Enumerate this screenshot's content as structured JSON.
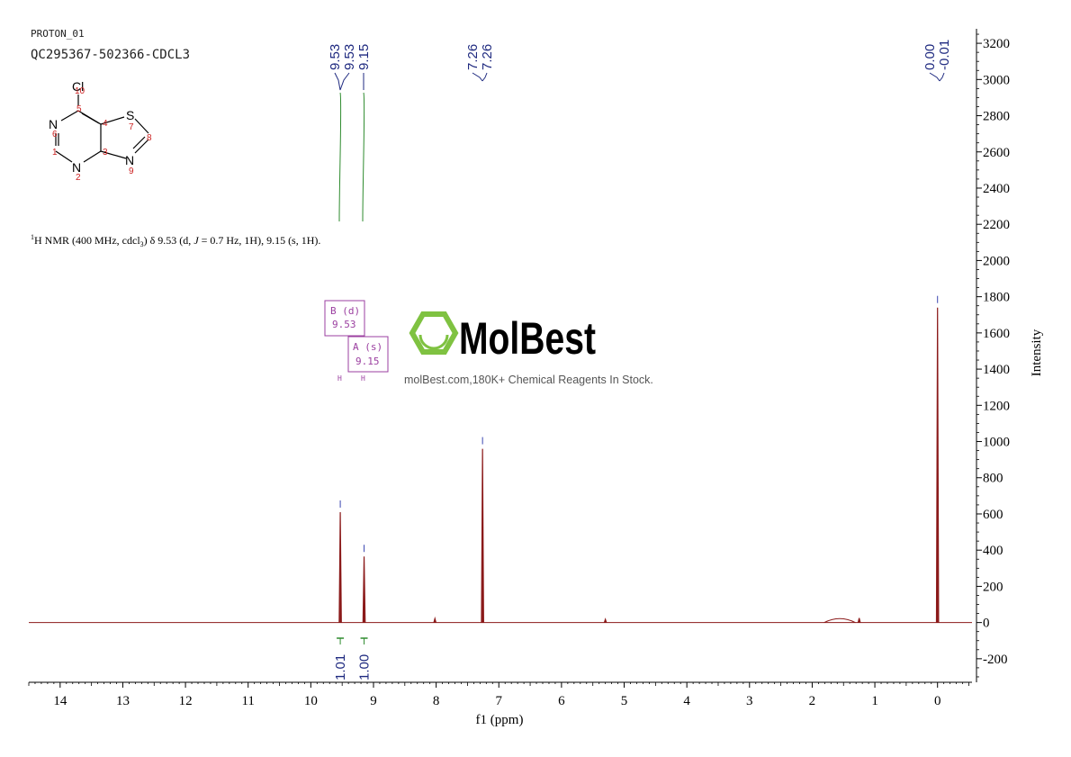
{
  "header": {
    "experiment": "PROTON_01",
    "sample": "QC295367-502366-CDCL3"
  },
  "structure": {
    "atoms": [
      "Cl",
      "N",
      "N",
      "N",
      "S"
    ],
    "locants": [
      "10",
      "5",
      "4",
      "6",
      "1",
      "3",
      "7",
      "8",
      "9",
      "2"
    ]
  },
  "nmr_text": {
    "sup": "1",
    "a": "H NMR (400 MHz, cdcl",
    "sub": "3",
    "b": ") δ 9.53 (d, ",
    "j": "J",
    "c": " = 0.7 Hz, 1H), 9.15 (s, 1H)."
  },
  "peak_labels": {
    "group1": [
      "9.53",
      "9.53",
      "9.15"
    ],
    "group2": [
      "7.26",
      "7.26"
    ],
    "group3": [
      "0.00",
      "-0.01"
    ]
  },
  "multiplets": [
    {
      "line1": "B (d)",
      "line2": "9.53",
      "atom": "H"
    },
    {
      "line1": "A (s)",
      "line2": "9.15",
      "atom": "H"
    }
  ],
  "watermark": {
    "brand": "MolBest",
    "tagline": "molBest.com,180K+ Chemical Reagents In Stock."
  },
  "colors": {
    "spectrum": "#8b1a1a",
    "peak_label": "#1f2a80",
    "integral": "#2e8b2e",
    "box": "#9b3fa0",
    "logo": "#7fc241",
    "axis": "#000000",
    "structure_num": "#cc2222"
  },
  "chart_data": {
    "type": "line",
    "xlabel": "f1 (ppm)",
    "ylabel": "Intensity",
    "xlim": [
      14.5,
      -0.55
    ],
    "ylim": [
      -330,
      3280
    ],
    "x_ticks": [
      14,
      13,
      12,
      11,
      10,
      9,
      8,
      7,
      6,
      5,
      4,
      3,
      2,
      1,
      0
    ],
    "y_ticks": [
      3200,
      3000,
      2800,
      2600,
      2400,
      2200,
      2000,
      1800,
      1600,
      1400,
      1200,
      1000,
      800,
      600,
      400,
      200,
      0,
      -200
    ],
    "peaks": [
      {
        "ppm": 9.53,
        "height": 610
      },
      {
        "ppm": 9.15,
        "height": 365
      },
      {
        "ppm": 7.26,
        "height": 960
      },
      {
        "ppm": 8.02,
        "height": 22
      },
      {
        "ppm": 5.3,
        "height": 18
      },
      {
        "ppm": 1.25,
        "height": 25
      },
      {
        "ppm": 0.0,
        "height": 1740
      }
    ],
    "broad_peaks": [
      {
        "ppm": 1.56,
        "height": 14,
        "width": 0.25
      }
    ],
    "integrals": [
      {
        "ppm": 9.53,
        "value": "1.01"
      },
      {
        "ppm": 9.15,
        "value": "1.00"
      }
    ]
  }
}
